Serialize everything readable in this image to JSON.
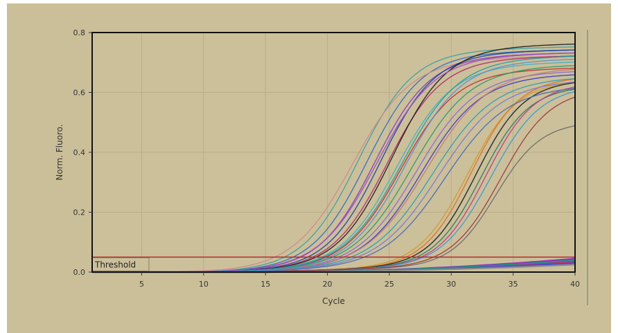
{
  "colors": {
    "panel_background": "#cbbf99",
    "plot_background": "#ccc09b",
    "threshold": "#b02a2a",
    "frame": "#111111"
  },
  "chart_data": {
    "type": "line",
    "title": "",
    "xlabel": "Cycle",
    "ylabel": "Norm. Fluoro.",
    "xlim": [
      1,
      40
    ],
    "ylim": [
      0,
      0.8
    ],
    "xticks": [
      "5",
      "10",
      "15",
      "20",
      "25",
      "30",
      "35",
      "40"
    ],
    "yticks": [
      "0.0",
      "0.2",
      "0.4",
      "0.6",
      "0.8"
    ],
    "grid": true,
    "legend": "none",
    "threshold": {
      "label": "Threshold",
      "value": 0.05
    },
    "series": [
      {
        "color": "#3aa3a0",
        "ct": 22.5,
        "plateau": 0.73,
        "k": 0.45
      },
      {
        "color": "#2e6fbf",
        "ct": 23.2,
        "plateau": 0.72,
        "k": 0.45
      },
      {
        "color": "#d08a8a",
        "ct": 22.0,
        "plateau": 0.7,
        "k": 0.42
      },
      {
        "color": "#7f3fbf",
        "ct": 23.8,
        "plateau": 0.71,
        "k": 0.45
      },
      {
        "color": "#1f3fa0",
        "ct": 24.3,
        "plateau": 0.72,
        "k": 0.46
      },
      {
        "color": "#b02a6a",
        "ct": 24.8,
        "plateau": 0.7,
        "k": 0.45
      },
      {
        "color": "#1a1a1a",
        "ct": 25.2,
        "plateau": 0.74,
        "k": 0.45
      },
      {
        "color": "#45b0c0",
        "ct": 25.6,
        "plateau": 0.68,
        "k": 0.44
      },
      {
        "color": "#c03030",
        "ct": 25.9,
        "plateau": 0.66,
        "k": 0.44
      },
      {
        "color": "#5a8fd0",
        "ct": 26.3,
        "plateau": 0.69,
        "k": 0.44
      },
      {
        "color": "#2a9a6a",
        "ct": 26.8,
        "plateau": 0.67,
        "k": 0.42
      },
      {
        "color": "#8a6ad0",
        "ct": 27.2,
        "plateau": 0.65,
        "k": 0.42
      },
      {
        "color": "#3a3ac0",
        "ct": 27.6,
        "plateau": 0.64,
        "k": 0.42
      },
      {
        "color": "#c07a7a",
        "ct": 28.0,
        "plateau": 0.66,
        "k": 0.4
      },
      {
        "color": "#2aa0b0",
        "ct": 28.5,
        "plateau": 0.63,
        "k": 0.4
      },
      {
        "color": "#d09a30",
        "ct": 31.3,
        "plateau": 0.62,
        "k": 0.5
      },
      {
        "color": "#e07020",
        "ct": 31.6,
        "plateau": 0.63,
        "k": 0.52
      },
      {
        "color": "#1a1a1a",
        "ct": 32.0,
        "plateau": 0.62,
        "k": 0.52
      },
      {
        "color": "#2a7a5a",
        "ct": 32.4,
        "plateau": 0.6,
        "k": 0.52
      },
      {
        "color": "#c03a8a",
        "ct": 32.8,
        "plateau": 0.61,
        "k": 0.52
      },
      {
        "color": "#3a9ad0",
        "ct": 33.2,
        "plateau": 0.6,
        "k": 0.5
      },
      {
        "color": "#6a6a6a",
        "ct": 33.6,
        "plateau": 0.48,
        "k": 0.55
      },
      {
        "color": "#9a3a3a",
        "ct": 34.0,
        "plateau": 0.59,
        "k": 0.5
      },
      {
        "color": "#7a7ad0",
        "ct": 29.0,
        "plateau": 0.62,
        "k": 0.4
      },
      {
        "color": "#4a6ab0",
        "ct": 29.5,
        "plateau": 0.6,
        "k": 0.4
      },
      {
        "color": "#a04ac0",
        "ct": 24.0,
        "plateau": 0.71,
        "k": 0.43
      },
      {
        "color": "#20a0a0",
        "ct": 26.0,
        "plateau": 0.7,
        "k": 0.43
      }
    ],
    "baseline_series": [
      {
        "color": "#9a2ac0",
        "end": 0.045
      },
      {
        "color": "#c0306a",
        "end": 0.035
      },
      {
        "color": "#4a4ad0",
        "end": 0.03
      },
      {
        "color": "#2a8a8a",
        "end": 0.04
      },
      {
        "color": "#8a8a8a",
        "end": 0.025
      }
    ]
  }
}
